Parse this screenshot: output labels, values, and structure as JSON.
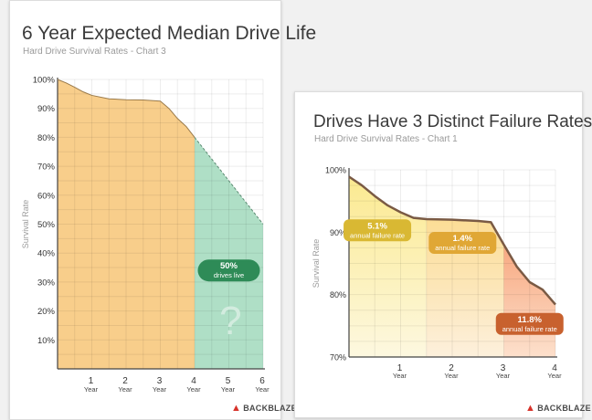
{
  "chart_data": [
    {
      "type": "area",
      "title": "6 Year Expected Median Drive Life",
      "subtitle": "Hard Drive Survival Rates - Chart 3",
      "ylabel": "Survival Rate",
      "xlabel": "",
      "xlim": [
        0,
        6
      ],
      "ylim": [
        0,
        100
      ],
      "y_ticks": [
        "10%",
        "20%",
        "30%",
        "40%",
        "50%",
        "60%",
        "70%",
        "80%",
        "90%",
        "100%"
      ],
      "x_ticks": [
        {
          "value": 1,
          "num": "1",
          "unit": "Year"
        },
        {
          "value": 2,
          "num": "2",
          "unit": "Year"
        },
        {
          "value": 3,
          "num": "3",
          "unit": "Year"
        },
        {
          "value": 4,
          "num": "4",
          "unit": "Year"
        },
        {
          "value": 5,
          "num": "5",
          "unit": "Year"
        },
        {
          "value": 6,
          "num": "6",
          "unit": "Year"
        }
      ],
      "grid": true,
      "series": [
        {
          "style": "solid",
          "fill": "#f7c97e",
          "line": "#9a7a4a",
          "x": [
            0,
            0.25,
            0.5,
            0.75,
            1,
            1.5,
            2,
            2.5,
            3,
            3.25,
            3.5,
            3.75,
            4
          ],
          "y": [
            100,
            98.8,
            97.3,
            95.7,
            94.5,
            93.3,
            93.0,
            92.9,
            92.5,
            90.0,
            86.5,
            83.8,
            80.0
          ]
        },
        {
          "style": "dashed",
          "fill": "#a6dcc0",
          "line": "#5c8a72",
          "x": [
            4,
            6
          ],
          "y": [
            80.0,
            50.0
          ]
        }
      ],
      "annotations": [
        {
          "value": "50%",
          "text": "drives live",
          "color": "#2e8b57",
          "x": 5,
          "y": 34
        },
        {
          "text": "?",
          "color": "#d3ecdf",
          "x": 5.05,
          "y": 12
        }
      ],
      "logo": "BACKBLAZE"
    },
    {
      "type": "area",
      "title": "Drives Have 3 Distinct Failure Rates",
      "subtitle": "Hard Drive Survival Rates - Chart 1",
      "ylabel": "Survival Rate",
      "xlabel": "",
      "xlim": [
        0,
        4
      ],
      "ylim": [
        70,
        100
      ],
      "y_ticks": [
        "70%",
        "80%",
        "90%",
        "100%"
      ],
      "x_ticks": [
        {
          "value": 1,
          "num": "1",
          "unit": "Year"
        },
        {
          "value": 2,
          "num": "2",
          "unit": "Year"
        },
        {
          "value": 3,
          "num": "3",
          "unit": "Year"
        },
        {
          "value": 4,
          "num": "4",
          "unit": "Year"
        }
      ],
      "grid": true,
      "bands": [
        {
          "from": 0,
          "to": 1.5,
          "top": "#fbe98d",
          "bottom": "#fdf8e0"
        },
        {
          "from": 1.5,
          "to": 3,
          "top": "#fbd67c",
          "bottom": "#fdf0dc"
        },
        {
          "from": 3,
          "to": 4,
          "top": "#f4834e",
          "bottom": "#fde0cc"
        }
      ],
      "series": [
        {
          "style": "solid",
          "line": "#7a5a44",
          "x": [
            0,
            0.25,
            0.5,
            0.75,
            1,
            1.25,
            1.5,
            2,
            2.5,
            2.75,
            3,
            3.25,
            3.5,
            3.75,
            4
          ],
          "y": [
            98.9,
            97.5,
            95.8,
            94.3,
            93.2,
            92.3,
            92.1,
            92.0,
            91.8,
            91.6,
            88.0,
            84.5,
            82.0,
            80.8,
            78.4
          ]
        }
      ],
      "annotations": [
        {
          "value": "5.1%",
          "text": "annual failure rate",
          "color": "#d9b833",
          "x": 0.55,
          "y": 90.3
        },
        {
          "value": "1.4%",
          "text": "annual failure rate",
          "color": "#e0a735",
          "x": 2.2,
          "y": 88.3
        },
        {
          "value": "11.8%",
          "text": "annual failure rate",
          "color": "#c8612e",
          "x": 3.5,
          "y": 75.3
        }
      ],
      "logo": "BACKBLAZE"
    }
  ]
}
